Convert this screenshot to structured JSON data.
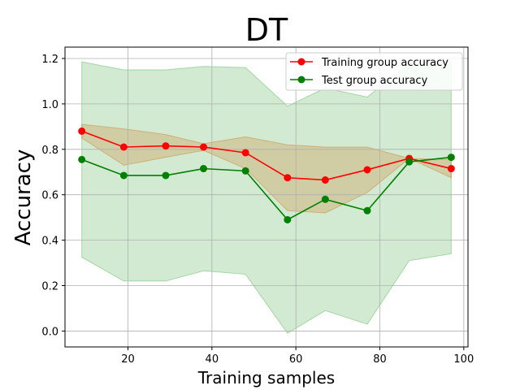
{
  "chart_data": {
    "type": "line",
    "title": "DT",
    "xlabel": "Training samples",
    "ylabel": "Accuracy",
    "xlim": [
      5,
      101
    ],
    "ylim": [
      -0.07,
      1.25
    ],
    "xticks": [
      20,
      40,
      60,
      80,
      100
    ],
    "yticks": [
      0.0,
      0.2,
      0.4,
      0.6,
      0.8,
      1.0,
      1.2
    ],
    "ytick_labels": [
      "0.0",
      "0.2",
      "0.4",
      "0.6",
      "0.8",
      "1.0",
      "1.2"
    ],
    "grid": true,
    "legend_position": "top-right",
    "x": [
      9,
      19,
      29,
      38,
      48,
      58,
      67,
      77,
      87,
      97
    ],
    "series": [
      {
        "name": "Training group accuracy",
        "color": "#ff0000",
        "band_color": "#cc6600",
        "values": [
          0.88,
          0.81,
          0.815,
          0.81,
          0.785,
          0.675,
          0.665,
          0.71,
          0.76,
          0.715
        ],
        "band_upper": [
          0.91,
          0.89,
          0.865,
          0.825,
          0.855,
          0.82,
          0.81,
          0.81,
          0.76,
          0.755
        ],
        "band_lower": [
          0.85,
          0.73,
          0.765,
          0.795,
          0.715,
          0.53,
          0.52,
          0.61,
          0.76,
          0.675
        ]
      },
      {
        "name": "Test group accuracy",
        "color": "#008000",
        "band_color": "#2ca02c",
        "values": [
          0.755,
          0.685,
          0.685,
          0.715,
          0.705,
          0.49,
          0.58,
          0.53,
          0.745,
          0.765
        ],
        "band_upper": [
          1.185,
          1.15,
          1.15,
          1.165,
          1.16,
          0.99,
          1.07,
          1.03,
          1.18,
          1.19
        ],
        "band_lower": [
          0.325,
          0.22,
          0.22,
          0.265,
          0.25,
          -0.01,
          0.09,
          0.03,
          0.31,
          0.34
        ]
      }
    ]
  }
}
